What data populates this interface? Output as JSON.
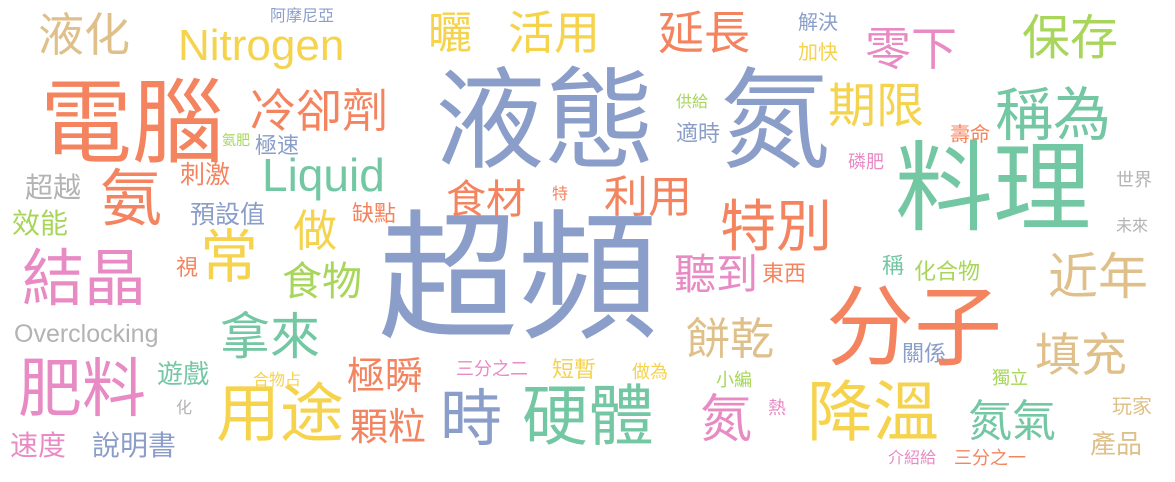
{
  "colors": {
    "blue": "#8b9ec9",
    "orange": "#f4845f",
    "green": "#73c7a3",
    "pink": "#e88bc4",
    "yellow": "#f5d34c",
    "lime": "#a7d65a",
    "tan": "#dfc08a",
    "gray": "#b3b3b3"
  },
  "words": {
    "w01": "超頻",
    "w02": "液態",
    "w03": "氮",
    "w04": "料理",
    "w05": "電腦",
    "w06": "分子",
    "w07": "硬體",
    "w08": "降溫",
    "w09": "用途",
    "w10": "肥料",
    "w11": "結晶",
    "w12": "稱為",
    "w13": "特別",
    "w14": "時",
    "w15": "氨",
    "w16": "常",
    "w17": "拿來",
    "w18": "Nitrogen",
    "w19": "Liquid",
    "w20": "冷卻劑",
    "w21": "期限",
    "w22": "保存",
    "w23": "零下",
    "w24": "延長",
    "w25": "活用",
    "w26": "液化",
    "w27": "曬",
    "w28": "食材",
    "w29": "利用",
    "w30": "做",
    "w31": "食物",
    "w32": "聽到",
    "w33": "近年",
    "w34": "填充",
    "w35": "餅乾",
    "w36": "極瞬",
    "w37": "顆粒",
    "w38": "氮氣",
    "w39": "氮",
    "w40": "Overclocking",
    "w41": "刺激",
    "w42": "預設值",
    "w43": "極速",
    "w44": "缺點",
    "w45": "超越",
    "w46": "效能",
    "w47": "視",
    "w48": "遊戲",
    "w49": "速度",
    "w50": "說明書",
    "w51": "短暫",
    "w52": "做為",
    "w53": "三分之二",
    "w54": "合物占",
    "w55": "化",
    "w56": "東西",
    "w57": "稱",
    "w58": "化合物",
    "w59": "關係",
    "w60": "獨立",
    "w61": "小編",
    "w62": "熱",
    "w63": "玩家",
    "w64": "產品",
    "w65": "介紹給",
    "w66": "三分之一",
    "w67": "阿摩尼亞",
    "w68": "解決",
    "w69": "加快",
    "w70": "供給",
    "w71": "適時",
    "w72": "壽命",
    "w73": "磷肥",
    "w74": "世界",
    "w75": "未來",
    "w76": "氨肥",
    "w77": "特"
  }
}
